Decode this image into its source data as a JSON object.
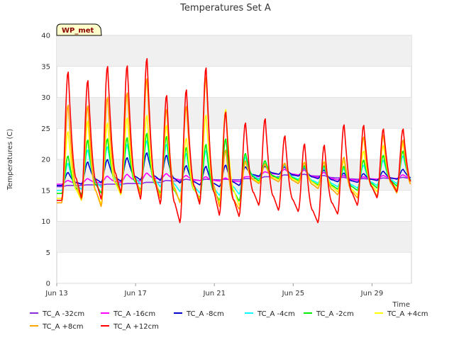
{
  "chart_data": {
    "type": "line",
    "title": "Temperatures Set A",
    "xlabel": "Time",
    "ylabel": "Temperatures (C)",
    "badge": "WP_met",
    "x_unit": "date",
    "x_range": [
      "2023-06-13",
      "2023-07-01"
    ],
    "xtick_labels": [
      "Jun 13",
      "Jun 17",
      "Jun 21",
      "Jun 25",
      "Jun 29"
    ],
    "ylim": [
      0,
      40
    ],
    "yticks": [
      0,
      5,
      10,
      15,
      20,
      25,
      30,
      35,
      40
    ],
    "grid": "horizontal bands",
    "legend_position": "bottom",
    "x": [
      "2023-06-13",
      "2023-06-14",
      "2023-06-15",
      "2023-06-16",
      "2023-06-17",
      "2023-06-18",
      "2023-06-19",
      "2023-06-20",
      "2023-06-21",
      "2023-06-22",
      "2023-06-23",
      "2023-06-24",
      "2023-06-25",
      "2023-06-26",
      "2023-06-27",
      "2023-06-28",
      "2023-06-29",
      "2023-06-30"
    ],
    "series": [
      {
        "name": "TC_A -32cm",
        "color": "#8a2be2",
        "min": [
          15.6,
          15.8,
          15.9,
          16.0,
          16.1,
          16.3,
          16.5,
          16.6,
          16.7,
          16.7,
          16.9,
          17.2,
          17.4,
          17.3,
          17.0,
          16.8,
          16.8,
          16.9
        ],
        "max": [
          15.8,
          15.9,
          16.0,
          16.1,
          16.3,
          16.6,
          16.8,
          16.8,
          16.8,
          16.9,
          17.2,
          17.5,
          17.6,
          17.4,
          17.1,
          16.9,
          17.0,
          17.1
        ]
      },
      {
        "name": "TC_A -16cm",
        "color": "#ff00ff",
        "min": [
          16.0,
          16.1,
          16.2,
          16.3,
          16.5,
          16.8,
          16.7,
          16.6,
          16.5,
          16.4,
          17.2,
          17.6,
          17.5,
          17.1,
          16.7,
          16.6,
          16.8,
          16.9
        ],
        "max": [
          16.6,
          16.9,
          17.3,
          17.6,
          17.8,
          17.7,
          17.4,
          17.2,
          17.0,
          17.2,
          18.0,
          18.4,
          18.3,
          17.9,
          17.4,
          17.2,
          17.4,
          17.5
        ]
      },
      {
        "name": "TC_A -8cm",
        "color": "#0000cd",
        "min": [
          15.8,
          16.0,
          16.3,
          16.5,
          16.7,
          16.6,
          16.2,
          15.9,
          15.6,
          15.8,
          17.3,
          17.6,
          17.3,
          16.9,
          16.4,
          16.3,
          16.6,
          16.8
        ],
        "max": [
          17.9,
          19.6,
          20.0,
          20.3,
          21.1,
          20.7,
          19.0,
          18.9,
          19.1,
          18.8,
          18.9,
          18.8,
          18.6,
          18.3,
          17.8,
          17.7,
          18.1,
          18.4
        ]
      },
      {
        "name": "TC_A -4cm",
        "color": "#00ffff",
        "min": [
          15.0,
          15.2,
          15.5,
          15.8,
          16.0,
          15.6,
          14.8,
          14.6,
          14.2,
          14.4,
          16.8,
          17.0,
          16.8,
          16.2,
          15.6,
          15.4,
          15.8,
          16.1
        ],
        "max": [
          19.4,
          21.6,
          22.1,
          22.5,
          23.1,
          22.5,
          21.0,
          21.5,
          21.6,
          20.4,
          19.4,
          19.1,
          18.8,
          18.7,
          18.5,
          19.1,
          19.9,
          20.6
        ]
      },
      {
        "name": "TC_A -2cm",
        "color": "#00ee00",
        "min": [
          14.5,
          14.4,
          14.6,
          14.9,
          15.1,
          14.6,
          13.3,
          13.8,
          13.4,
          13.3,
          16.5,
          16.9,
          16.6,
          15.9,
          15.2,
          15.0,
          15.4,
          15.7
        ],
        "max": [
          20.6,
          23.2,
          23.4,
          23.6,
          24.3,
          23.8,
          22.0,
          22.5,
          23.4,
          21.0,
          19.8,
          19.3,
          19.0,
          19.0,
          18.9,
          19.9,
          20.7,
          21.4
        ]
      },
      {
        "name": "TC_A +4cm",
        "color": "#ffff00",
        "min": [
          13.7,
          13.4,
          12.8,
          14.3,
          14.8,
          14.2,
          13.2,
          13.6,
          12.9,
          12.6,
          16.3,
          16.7,
          16.4,
          15.7,
          14.8,
          14.3,
          14.8,
          15.2
        ],
        "max": [
          24.6,
          26.3,
          26.0,
          26.8,
          27.2,
          25.6,
          23.5,
          27.3,
          28.2,
          19.6,
          19.2,
          19.4,
          19.6,
          19.7,
          19.8,
          21.4,
          22.3,
          22.6
        ]
      },
      {
        "name": "TC_A +8cm",
        "color": "#ffa500",
        "min": [
          13.0,
          13.5,
          12.4,
          14.6,
          14.4,
          13.8,
          13.0,
          13.2,
          12.4,
          12.0,
          16.1,
          16.4,
          16.1,
          15.3,
          14.3,
          13.8,
          14.1,
          14.6
        ],
        "max": [
          28.9,
          28.8,
          30.2,
          30.9,
          33.2,
          28.2,
          28.7,
          33.4,
          21.6,
          19.8,
          19.3,
          19.4,
          19.5,
          19.6,
          20.4,
          23.7,
          24.0,
          23.2
        ]
      },
      {
        "name": "TC_A +12cm",
        "color": "#ff0000",
        "min": [
          13.4,
          13.8,
          13.6,
          14.6,
          13.6,
          12.8,
          9.8,
          12.8,
          11.0,
          10.8,
          12.6,
          11.8,
          11.6,
          9.8,
          11.2,
          12.6,
          13.8,
          14.8
        ],
        "max": [
          34.3,
          32.9,
          35.2,
          35.3,
          36.5,
          30.5,
          31.4,
          35.0,
          27.8,
          26.0,
          26.7,
          23.9,
          22.6,
          22.4,
          25.7,
          25.6,
          25.0,
          25.0
        ]
      }
    ]
  }
}
